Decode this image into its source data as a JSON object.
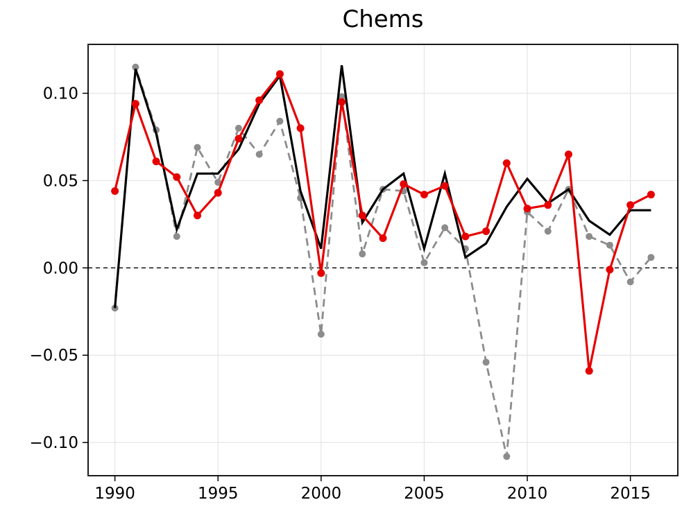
{
  "chart_data": {
    "type": "line",
    "title": "Chems",
    "xlabel": "",
    "ylabel": "",
    "x": [
      1990,
      1991,
      1992,
      1993,
      1994,
      1995,
      1996,
      1997,
      1998,
      1999,
      2000,
      2001,
      2002,
      2003,
      2004,
      2005,
      2006,
      2007,
      2008,
      2009,
      2010,
      2011,
      2012,
      2013,
      2014,
      2015,
      2016
    ],
    "series": [
      {
        "name": "gray-dashed",
        "color": "#8c8c8c",
        "style": "dashed",
        "marker": "circle",
        "values": [
          -0.023,
          0.115,
          0.079,
          0.018,
          0.069,
          0.049,
          0.08,
          0.065,
          0.084,
          0.04,
          -0.038,
          0.098,
          0.008,
          0.045,
          0.044,
          0.003,
          0.023,
          0.011,
          -0.054,
          -0.108,
          0.032,
          0.021,
          0.045,
          0.018,
          0.013,
          -0.008,
          0.006
        ]
      },
      {
        "name": "black-solid",
        "color": "#000000",
        "style": "solid",
        "marker": "none",
        "values": [
          -0.023,
          0.114,
          0.077,
          0.022,
          0.054,
          0.054,
          0.068,
          0.094,
          0.11,
          0.044,
          0.011,
          0.116,
          0.026,
          0.045,
          0.054,
          0.011,
          0.054,
          0.006,
          0.014,
          0.035,
          0.051,
          0.037,
          0.045,
          0.027,
          0.019,
          0.033,
          0.033
        ]
      },
      {
        "name": "red-solid-markers",
        "color": "#e60000",
        "style": "solid",
        "marker": "circle",
        "values": [
          0.044,
          0.094,
          0.061,
          0.052,
          0.03,
          0.043,
          0.074,
          0.096,
          0.111,
          0.08,
          -0.003,
          0.095,
          0.03,
          0.017,
          0.048,
          0.042,
          0.047,
          0.018,
          0.021,
          0.06,
          0.034,
          0.036,
          0.065,
          -0.059,
          -0.001,
          0.036,
          0.042
        ]
      }
    ],
    "xticks": [
      1990,
      1995,
      2000,
      2005,
      2010,
      2015
    ],
    "yticks": [
      0.1,
      0.05,
      0.0,
      -0.05,
      -0.1
    ],
    "ytick_labels": [
      "0.10",
      "0.05",
      "0.00",
      "−0.05",
      "−0.10"
    ],
    "xlim": [
      1988.7,
      2017.3
    ],
    "ylim": [
      -0.119,
      0.128
    ],
    "grid": true,
    "legend": "none",
    "zero_line": {
      "show": true,
      "color": "#000000"
    },
    "grid_color": "#e5e5e5",
    "background": "#ffffff"
  }
}
